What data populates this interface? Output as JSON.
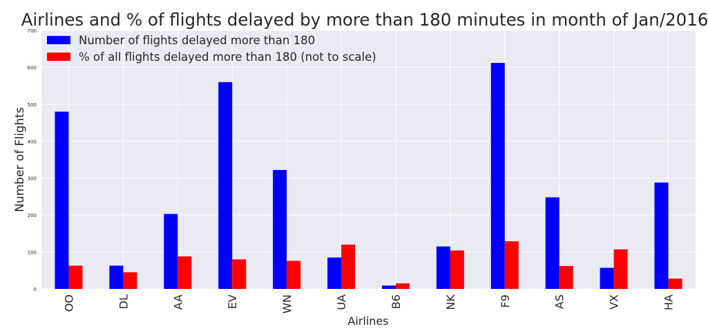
{
  "chart_data": {
    "type": "bar",
    "title": "Airlines and % of flights delayed by more than 180 minutes in month of Jan/2016",
    "xlabel": "Airlines",
    "ylabel": "Number of Flights",
    "ylim": [
      0,
      700
    ],
    "yticks": [
      0,
      100,
      200,
      300,
      400,
      500,
      600,
      700
    ],
    "grid": true,
    "legend_position": "top-left",
    "categories": [
      "OO",
      "DL",
      "AA",
      "EV",
      "WN",
      "UA",
      "B6",
      "NK",
      "F9",
      "AS",
      "VX",
      "HA"
    ],
    "series": [
      {
        "name": "Number of flights delayed more than 180",
        "color": "#0000ff",
        "values": [
          480,
          63,
          203,
          560,
          322,
          85,
          9,
          115,
          612,
          248,
          57,
          288
        ]
      },
      {
        "name": "% of all flights delayed more than 180 (not to scale)",
        "color": "#ff0000",
        "values": [
          63,
          45,
          88,
          80,
          76,
          120,
          15,
          104,
          129,
          62,
          107,
          28
        ]
      }
    ]
  }
}
